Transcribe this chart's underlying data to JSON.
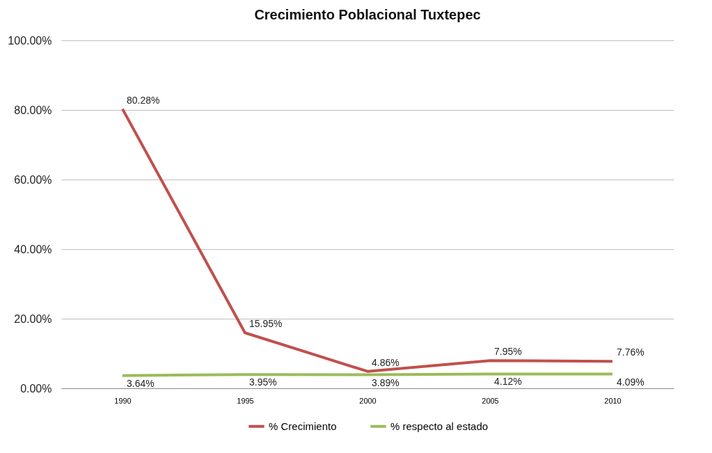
{
  "chart_data": {
    "type": "line",
    "title": "Crecimiento Poblacional Tuxtepec",
    "categories": [
      "1990",
      "1995",
      "2000",
      "2005",
      "2010"
    ],
    "series": [
      {
        "name": "% Crecimiento",
        "color": "#c0504d",
        "values": [
          80.28,
          15.95,
          4.86,
          7.95,
          7.76
        ],
        "value_labels": [
          "80.28%",
          "15.95%",
          "4.86%",
          "7.95%",
          "7.76%"
        ]
      },
      {
        "name": "% respecto al estado",
        "color": "#9bbb59",
        "values": [
          3.64,
          3.95,
          3.89,
          4.12,
          4.09
        ],
        "value_labels": [
          "3.64%",
          "3.95%",
          "3.89%",
          "4.12%",
          "4.09%"
        ]
      }
    ],
    "ylim": [
      0,
      100
    ],
    "yticks": [
      {
        "value": 0,
        "label": "0.00%"
      },
      {
        "value": 20,
        "label": "20.00%"
      },
      {
        "value": 40,
        "label": "40.00%"
      },
      {
        "value": 60,
        "label": "60.00%"
      },
      {
        "value": 80,
        "label": "80.00%"
      },
      {
        "value": 100,
        "label": "100.00%"
      }
    ],
    "grid": "y",
    "legend": "bottom",
    "marker": "none",
    "line_style": "solid"
  }
}
